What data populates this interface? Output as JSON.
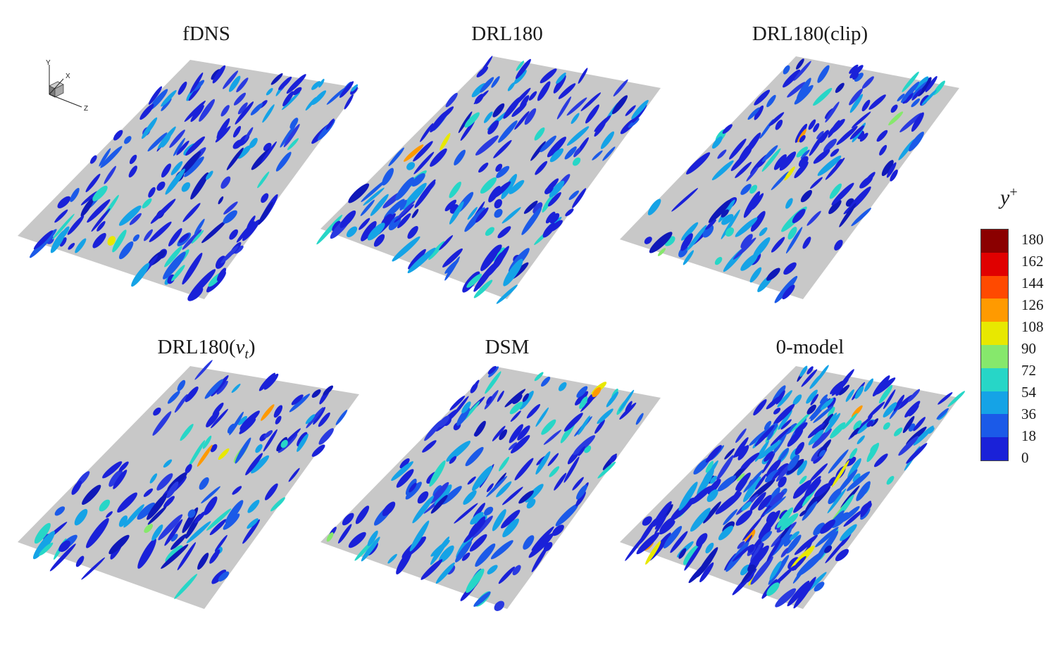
{
  "panels": [
    {
      "id": "fdns",
      "title": "fDNS",
      "density": 1.0
    },
    {
      "id": "drl180",
      "title": "DRL180",
      "density": 1.0
    },
    {
      "id": "drl180-clip",
      "title": "DRL180(clip)",
      "density": 0.95
    },
    {
      "id": "drl180-nut",
      "title": "DRL180(",
      "title_var": "ν",
      "title_sub": "t",
      "title_end": ")",
      "density": 0.8
    },
    {
      "id": "dsm",
      "title": "DSM",
      "density": 1.0
    },
    {
      "id": "zero-model",
      "title": "0-model",
      "density": 1.8
    }
  ],
  "axes": {
    "y": "Y",
    "x": "X",
    "z": "Z"
  },
  "legend": {
    "variable": "y",
    "superscript": "+",
    "ticks": [
      "180",
      "162",
      "144",
      "126",
      "108",
      "90",
      "72",
      "54",
      "36",
      "18",
      "0"
    ],
    "colors": [
      "#8b0000",
      "#e00000",
      "#ff4a00",
      "#ff9a00",
      "#e8e800",
      "#86e86c",
      "#27d6c7",
      "#15a3e6",
      "#1b5ae8",
      "#1a21d8",
      "#0a0a7a"
    ]
  },
  "colors": {
    "plate": "#c8c8c8",
    "background": "#ffffff"
  }
}
